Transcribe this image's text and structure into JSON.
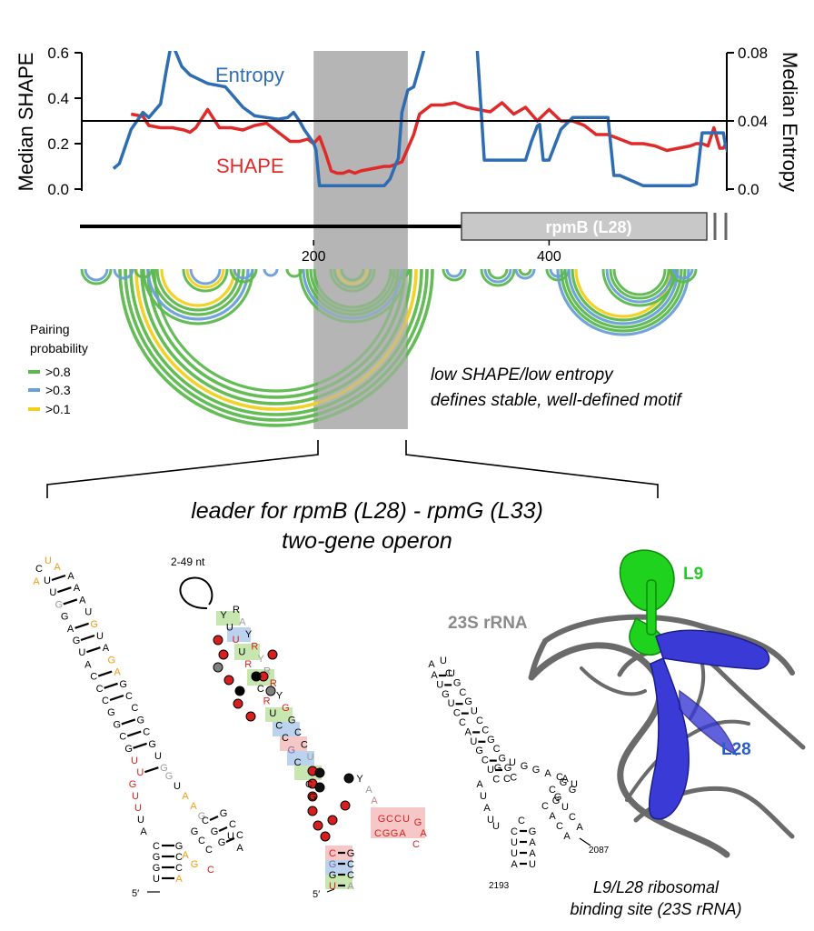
{
  "chart_data": {
    "type": "line",
    "ylabel_left": "Median SHAPE",
    "ylabel_right": "Median Entropy",
    "y_ticks_left": [
      "0.0",
      "0.2",
      "0.4",
      "0.6"
    ],
    "y_ticks_right": [
      "0.0",
      "0.04",
      "0.08"
    ],
    "x_ticks": [
      "200",
      "400"
    ],
    "xlim": [
      0,
      555
    ],
    "ylim_left": [
      0,
      0.6
    ],
    "ylim_right": [
      0,
      0.08
    ],
    "threshold_shape": 0.3,
    "highlight_range": [
      200,
      280
    ],
    "series": [
      {
        "name": "Entropy",
        "axis": "right",
        "color": "#2f6db3",
        "x": [
          30,
          35,
          45,
          55,
          60,
          70,
          75,
          79,
          82,
          88,
          95,
          110,
          125,
          140,
          150,
          160,
          170,
          178,
          183,
          188,
          192,
          200,
          202,
          205,
          207,
          208,
          212,
          230,
          260,
          265,
          270,
          272,
          275,
          280,
          285,
          290,
          295,
          300,
          305,
          310,
          318,
          319,
          323,
          325,
          330,
          335,
          337,
          339,
          345,
          360,
          370,
          380,
          385,
          390,
          392,
          395,
          400,
          410,
          420,
          430,
          440,
          445,
          450,
          455,
          460,
          480,
          500,
          505,
          510,
          515,
          520,
          525,
          530,
          540,
          545,
          548,
          550,
          553
        ],
        "y": [
          0.012,
          0.015,
          0.035,
          0.045,
          0.042,
          0.05,
          0.07,
          0.085,
          0.082,
          0.072,
          0.067,
          0.062,
          0.06,
          0.048,
          0.043,
          0.042,
          0.041,
          0.042,
          0.045,
          0.04,
          0.035,
          0.027,
          0.023,
          0.002,
          0.002,
          0.002,
          0.002,
          0.002,
          0.002,
          0.006,
          0.015,
          0.018,
          0.045,
          0.058,
          0.06,
          0.072,
          0.085,
          0.085,
          0.085,
          0.085,
          0.085,
          0.085,
          0.085,
          0.085,
          0.085,
          0.085,
          0.085,
          0.082,
          0.017,
          0.017,
          0.017,
          0.017,
          0.028,
          0.037,
          0.038,
          0.017,
          0.017,
          0.035,
          0.042,
          0.042,
          0.042,
          0.042,
          0.042,
          0.008,
          0.008,
          0.002,
          0.002,
          0.002,
          0.002,
          0.002,
          0.002,
          0.003,
          0.033,
          0.033,
          0.033,
          0.033,
          0.025,
          0.02
        ]
      },
      {
        "name": "SHAPE",
        "axis": "left",
        "color": "#e02a2a",
        "x": [
          45,
          55,
          60,
          70,
          80,
          90,
          95,
          100,
          110,
          120,
          130,
          140,
          150,
          160,
          170,
          180,
          188,
          195,
          200,
          205,
          210,
          215,
          220,
          225,
          230,
          235,
          240,
          250,
          260,
          265,
          270,
          275,
          280,
          285,
          290,
          300,
          310,
          320,
          330,
          340,
          350,
          360,
          370,
          380,
          390,
          400,
          410,
          420,
          430,
          440,
          450,
          460,
          470,
          480,
          490,
          500,
          510,
          520,
          525,
          530,
          535,
          540,
          545,
          548,
          550
        ],
        "y": [
          0.33,
          0.32,
          0.28,
          0.27,
          0.27,
          0.26,
          0.25,
          0.27,
          0.35,
          0.27,
          0.27,
          0.26,
          0.28,
          0.29,
          0.25,
          0.21,
          0.21,
          0.22,
          0.2,
          0.23,
          0.16,
          0.08,
          0.07,
          0.07,
          0.08,
          0.07,
          0.08,
          0.09,
          0.1,
          0.1,
          0.11,
          0.12,
          0.18,
          0.24,
          0.33,
          0.37,
          0.37,
          0.38,
          0.36,
          0.35,
          0.34,
          0.38,
          0.33,
          0.36,
          0.3,
          0.35,
          0.3,
          0.3,
          0.28,
          0.24,
          0.24,
          0.22,
          0.2,
          0.2,
          0.19,
          0.17,
          0.18,
          0.19,
          0.2,
          0.2,
          0.19,
          0.27,
          0.18,
          0.18,
          0.2
        ]
      }
    ]
  },
  "gene": {
    "label": "rpmB (L28)",
    "start": 310
  },
  "arcs": {
    "legend_title": [
      "Pairing",
      "probability"
    ],
    "legend_items": [
      {
        "label": ">0.8",
        "color": "#5cb84e"
      },
      {
        "label": ">0.3",
        "color": "#6b9fd6"
      },
      {
        "label": ">0.1",
        "color": "#f2d01b"
      }
    ],
    "annotation_line1": "low SHAPE/low entropy",
    "annotation_line2": "defines stable, well-defined motif"
  },
  "operon_title": [
    "leader for rpmB (L28) - rpmG (L33)",
    "two-gene operon"
  ],
  "hairpin_left": {
    "five_prime": "5′"
  },
  "hairpin_middle": {
    "loop_label": "2-49 nt",
    "five_prime": "5′"
  },
  "rrna_hairpin": {
    "num_2087": "2087",
    "num_2193": "2193"
  },
  "structure": {
    "rrna_label": "23S rRNA",
    "l9_label": "L9",
    "l28_label": "L28"
  },
  "caption": [
    "L9/L28 ribosomal",
    "binding site (23S rRNA)"
  ]
}
